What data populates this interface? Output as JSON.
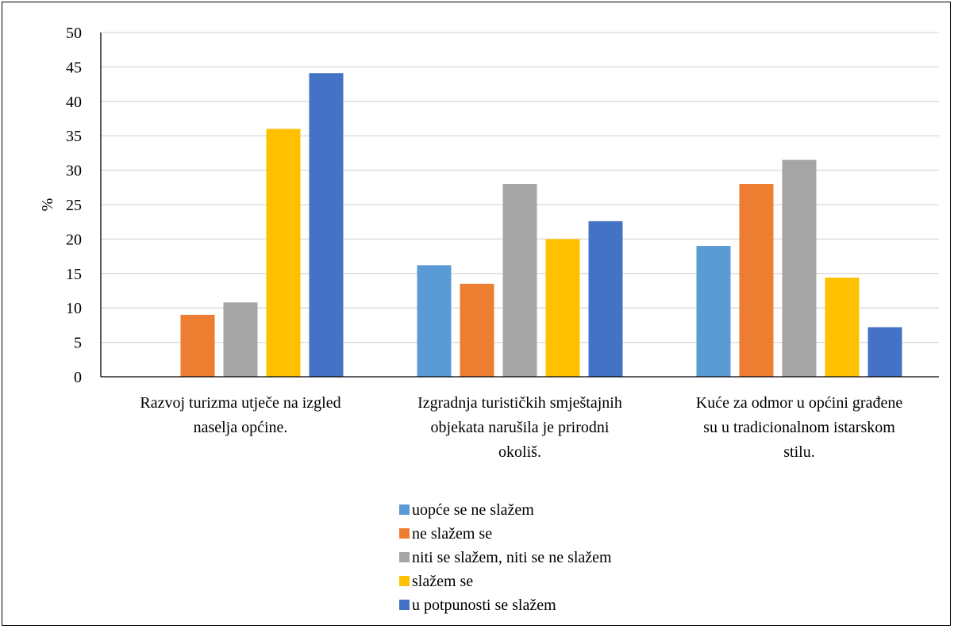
{
  "chart_data": {
    "type": "bar",
    "title": "",
    "xlabel": "",
    "ylabel": "%",
    "ylim": [
      0,
      50
    ],
    "yticks": [
      0,
      5,
      10,
      15,
      20,
      25,
      30,
      35,
      40,
      45,
      50
    ],
    "grid": true,
    "legend_position": "bottom",
    "categories": [
      [
        "Razvoj turizma utječe na izgled",
        "naselja općine."
      ],
      [
        "Izgradnja turističkih smještajnih",
        "objekata narušila je prirodni",
        "okoliš."
      ],
      [
        "Kuće za odmor u općini građene",
        "su u tradicionalnom istarskom",
        "stilu."
      ]
    ],
    "series": [
      {
        "name": "uopće se ne slažem",
        "color": "#5B9BD5",
        "values": [
          0,
          16.2,
          19
        ]
      },
      {
        "name": "ne slažem se",
        "color": "#ED7D31",
        "values": [
          9,
          13.5,
          28
        ]
      },
      {
        "name": "niti se slažem, niti se ne slažem",
        "color": "#A5A5A5",
        "values": [
          10.8,
          28,
          31.5
        ]
      },
      {
        "name": "slažem se",
        "color": "#FFC000",
        "values": [
          36,
          20,
          14.4
        ]
      },
      {
        "name": "u potpunosti se slažem",
        "color": "#4472C4",
        "values": [
          44.1,
          22.6,
          7.2
        ]
      }
    ]
  }
}
